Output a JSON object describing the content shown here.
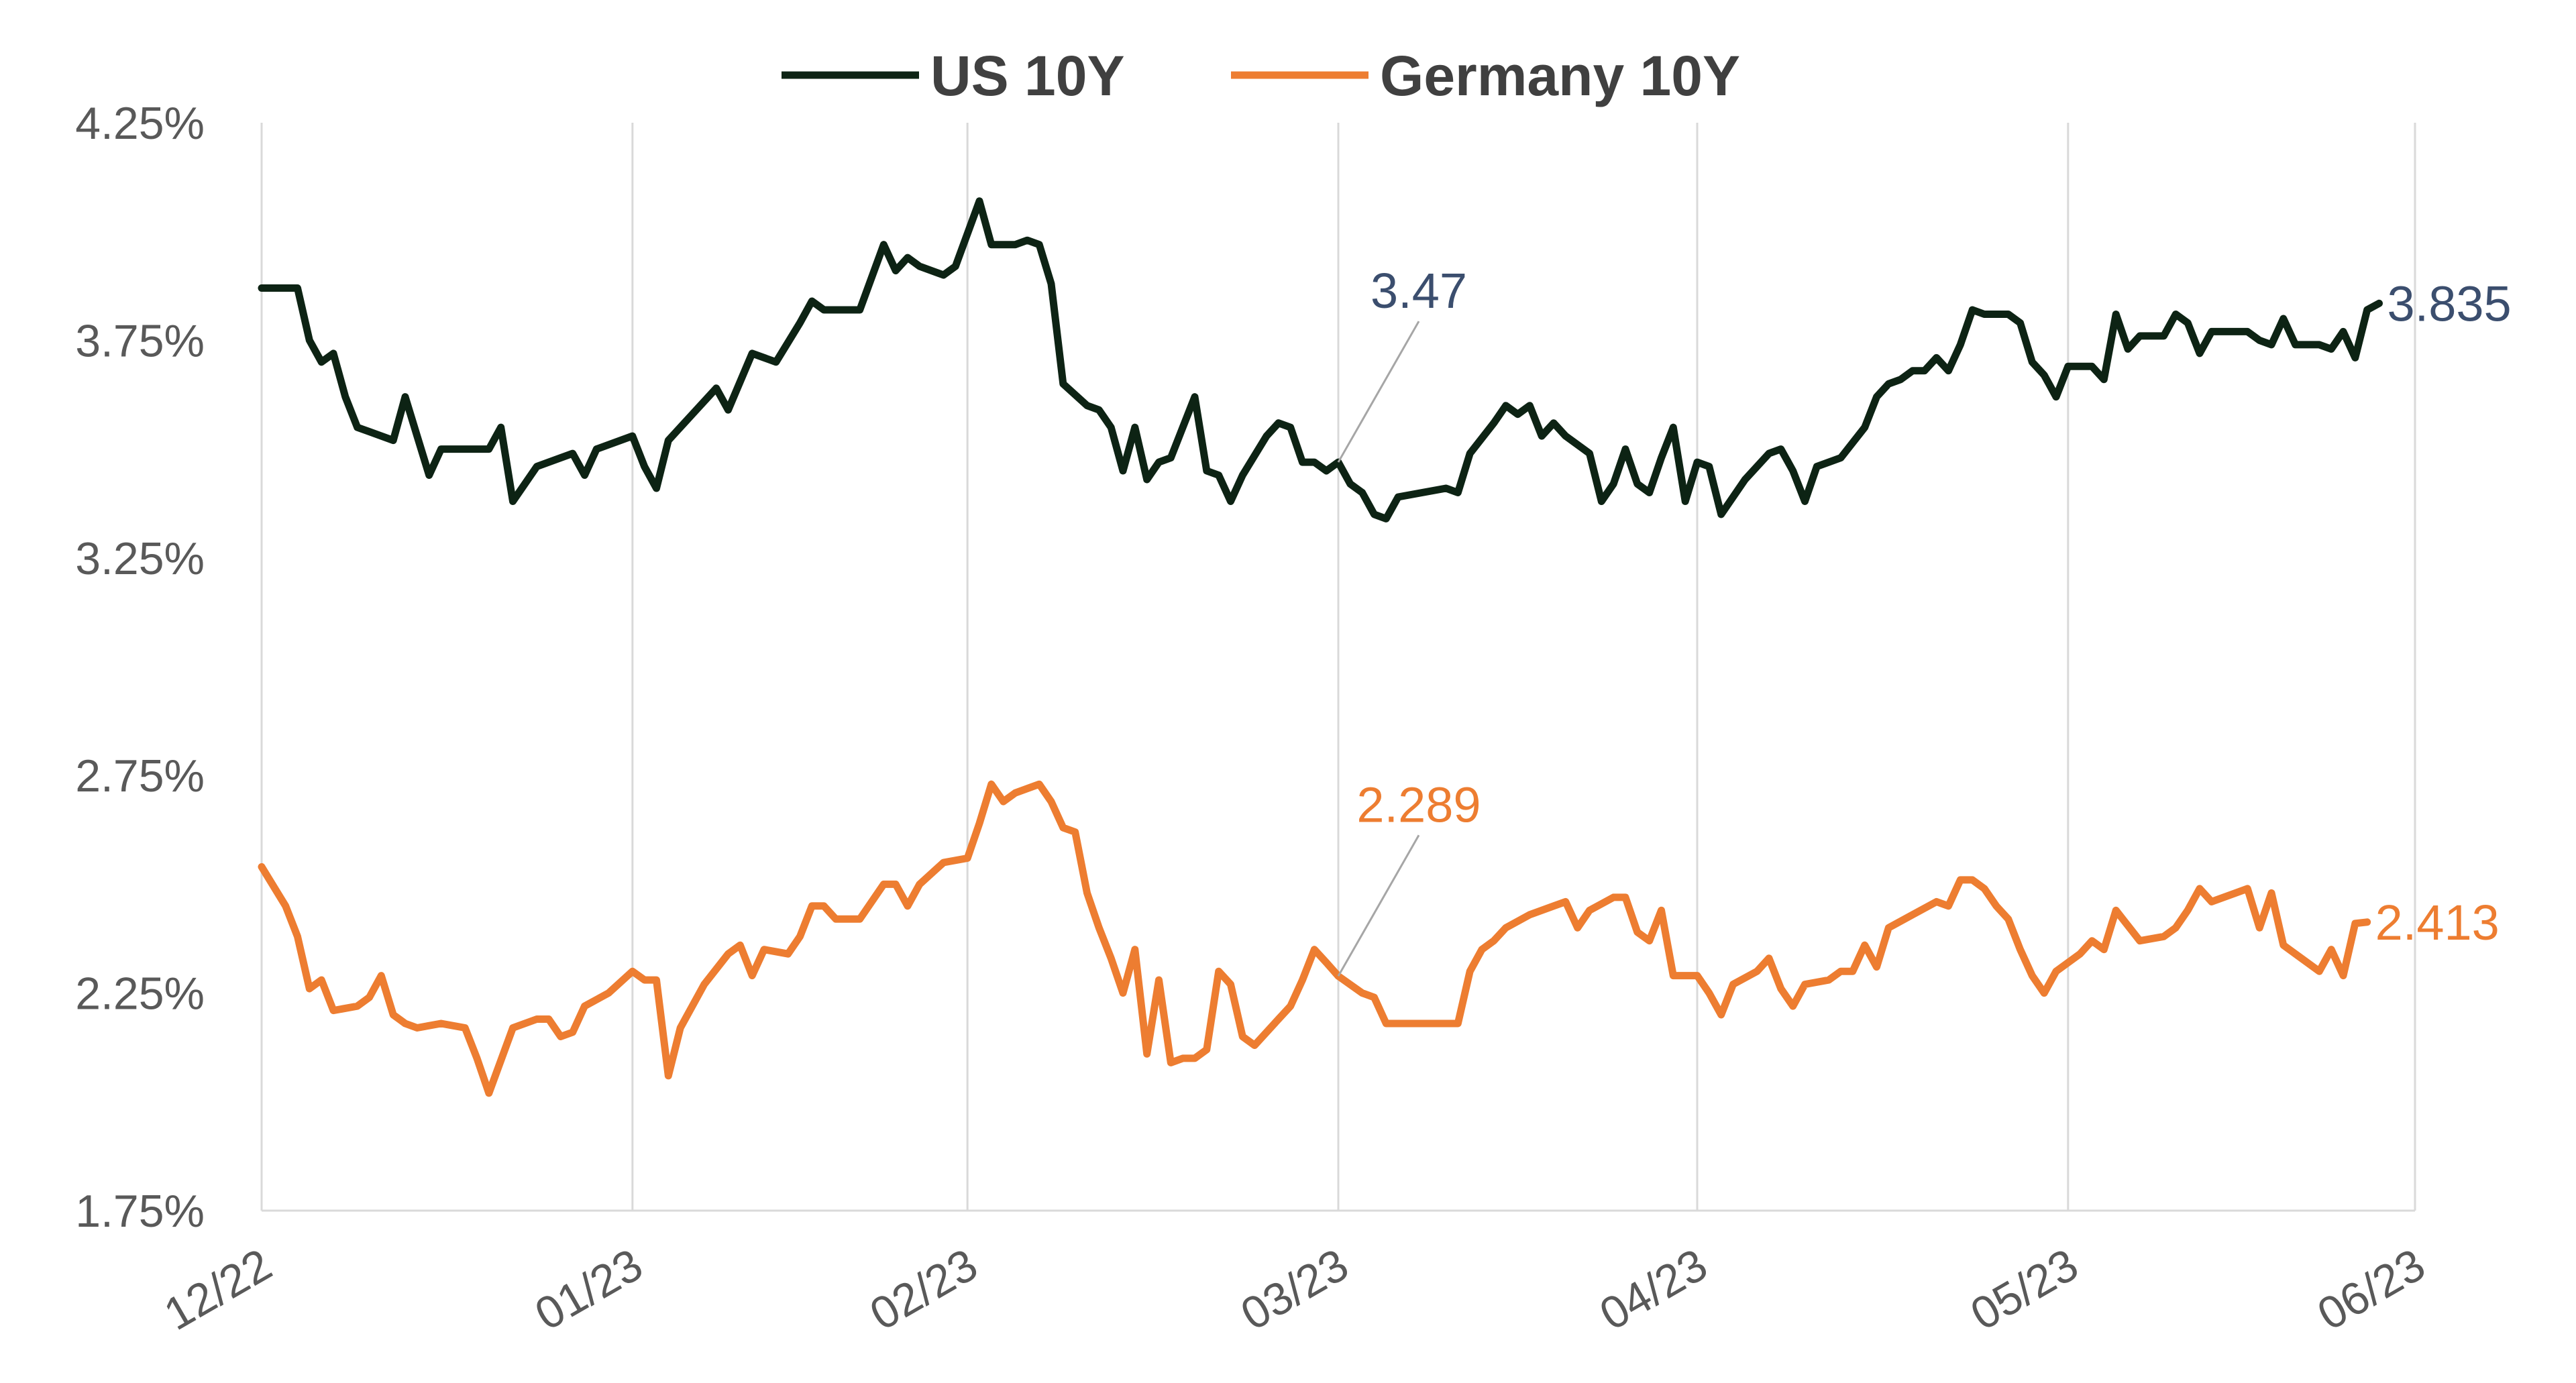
{
  "chart_data": {
    "type": "line",
    "title": "",
    "xlabel": "",
    "ylabel": "",
    "ylim": [
      1.75,
      4.25
    ],
    "y_ticks": [
      "4.25%",
      "3.75%",
      "3.25%",
      "2.75%",
      "2.25%",
      "1.75%"
    ],
    "y_tick_values": [
      4.25,
      3.75,
      3.25,
      2.75,
      2.25,
      1.75
    ],
    "x_range": [
      0,
      180
    ],
    "x_ticks": [
      {
        "label": "12/22",
        "x": 0
      },
      {
        "label": "01/23",
        "x": 31
      },
      {
        "label": "02/23",
        "x": 59
      },
      {
        "label": "03/23",
        "x": 90
      },
      {
        "label": "04/23",
        "x": 120
      },
      {
        "label": "05/23",
        "x": 151
      },
      {
        "label": "06/23",
        "x": 180
      }
    ],
    "grid": "vertical",
    "legend_position": "top-center",
    "series": [
      {
        "name": "US 10Y",
        "color": "#0d2314",
        "points": [
          [
            0,
            3.87
          ],
          [
            3,
            3.87
          ],
          [
            4,
            3.75
          ],
          [
            5,
            3.7
          ],
          [
            6,
            3.72
          ],
          [
            7,
            3.62
          ],
          [
            8,
            3.55
          ],
          [
            9,
            3.54
          ],
          [
            11,
            3.52
          ],
          [
            12,
            3.62
          ],
          [
            13,
            3.53
          ],
          [
            14,
            3.44
          ],
          [
            15,
            3.5
          ],
          [
            17,
            3.5
          ],
          [
            19,
            3.5
          ],
          [
            20,
            3.55
          ],
          [
            21,
            3.38
          ],
          [
            23,
            3.46
          ],
          [
            25,
            3.48
          ],
          [
            26,
            3.49
          ],
          [
            27,
            3.44
          ],
          [
            28,
            3.5
          ],
          [
            30,
            3.52
          ],
          [
            31,
            3.53
          ],
          [
            32,
            3.46
          ],
          [
            33,
            3.41
          ],
          [
            34,
            3.52
          ],
          [
            36,
            3.58
          ],
          [
            38,
            3.64
          ],
          [
            39,
            3.59
          ],
          [
            41,
            3.72
          ],
          [
            43,
            3.7
          ],
          [
            45,
            3.79
          ],
          [
            46,
            3.84
          ],
          [
            47,
            3.82
          ],
          [
            48,
            3.82
          ],
          [
            50,
            3.82
          ],
          [
            52,
            3.97
          ],
          [
            53,
            3.91
          ],
          [
            54,
            3.94
          ],
          [
            55,
            3.92
          ],
          [
            57,
            3.9
          ],
          [
            58,
            3.92
          ],
          [
            60,
            4.07
          ],
          [
            61,
            3.97
          ],
          [
            63,
            3.97
          ],
          [
            64,
            3.98
          ],
          [
            65,
            3.97
          ],
          [
            66,
            3.88
          ],
          [
            67,
            3.65
          ],
          [
            69,
            3.6
          ],
          [
            70,
            3.59
          ],
          [
            71,
            3.55
          ],
          [
            72,
            3.45
          ],
          [
            73,
            3.55
          ],
          [
            74,
            3.43
          ],
          [
            75,
            3.47
          ],
          [
            76,
            3.48
          ],
          [
            78,
            3.62
          ],
          [
            79,
            3.45
          ],
          [
            80,
            3.44
          ],
          [
            81,
            3.38
          ],
          [
            82,
            3.44
          ],
          [
            84,
            3.53
          ],
          [
            85,
            3.56
          ],
          [
            86,
            3.55
          ],
          [
            87,
            3.47
          ],
          [
            88,
            3.47
          ],
          [
            89,
            3.45
          ],
          [
            90,
            3.47
          ],
          [
            91,
            3.42
          ],
          [
            92,
            3.4
          ],
          [
            93,
            3.35
          ],
          [
            94,
            3.34
          ],
          [
            95,
            3.39
          ],
          [
            97,
            3.4
          ],
          [
            99,
            3.41
          ],
          [
            100,
            3.4
          ],
          [
            101,
            3.49
          ],
          [
            103,
            3.56
          ],
          [
            104,
            3.6
          ],
          [
            105,
            3.58
          ],
          [
            106,
            3.6
          ],
          [
            107,
            3.53
          ],
          [
            108,
            3.56
          ],
          [
            109,
            3.53
          ],
          [
            111,
            3.49
          ],
          [
            112,
            3.38
          ],
          [
            113,
            3.42
          ],
          [
            114,
            3.5
          ],
          [
            115,
            3.42
          ],
          [
            116,
            3.4
          ],
          [
            117,
            3.48
          ],
          [
            118,
            3.55
          ],
          [
            119,
            3.38
          ],
          [
            120,
            3.47
          ],
          [
            121,
            3.46
          ],
          [
            122,
            3.35
          ],
          [
            124,
            3.43
          ],
          [
            126,
            3.49
          ],
          [
            127,
            3.5
          ],
          [
            128,
            3.45
          ],
          [
            129,
            3.38
          ],
          [
            130,
            3.46
          ],
          [
            131,
            3.47
          ],
          [
            132,
            3.48
          ],
          [
            134,
            3.55
          ],
          [
            135,
            3.62
          ],
          [
            136,
            3.65
          ],
          [
            137,
            3.66
          ],
          [
            138,
            3.68
          ],
          [
            139,
            3.68
          ],
          [
            140,
            3.71
          ],
          [
            141,
            3.68
          ],
          [
            142,
            3.74
          ],
          [
            143,
            3.82
          ],
          [
            144,
            3.81
          ],
          [
            145,
            3.81
          ],
          [
            146,
            3.81
          ],
          [
            147,
            3.79
          ],
          [
            148,
            3.7
          ],
          [
            149,
            3.67
          ],
          [
            150,
            3.62
          ],
          [
            151,
            3.69
          ],
          [
            153,
            3.69
          ],
          [
            154,
            3.66
          ],
          [
            155,
            3.81
          ],
          [
            156,
            3.73
          ],
          [
            157,
            3.76
          ],
          [
            158,
            3.76
          ],
          [
            159,
            3.76
          ],
          [
            160,
            3.81
          ],
          [
            161,
            3.79
          ],
          [
            162,
            3.72
          ],
          [
            163,
            3.77
          ],
          [
            164,
            3.77
          ],
          [
            165,
            3.77
          ],
          [
            166,
            3.77
          ],
          [
            167,
            3.75
          ],
          [
            168,
            3.74
          ],
          [
            169,
            3.8
          ],
          [
            170,
            3.74
          ],
          [
            172,
            3.74
          ],
          [
            173,
            3.73
          ],
          [
            174,
            3.77
          ],
          [
            175,
            3.71
          ],
          [
            176,
            3.82
          ],
          [
            177,
            3.835
          ]
        ]
      },
      {
        "name": "Germany 10Y",
        "color": "#ed7d31",
        "points": [
          [
            0,
            2.54
          ],
          [
            2,
            2.45
          ],
          [
            3,
            2.38
          ],
          [
            4,
            2.26
          ],
          [
            5,
            2.28
          ],
          [
            6,
            2.21
          ],
          [
            8,
            2.22
          ],
          [
            9,
            2.24
          ],
          [
            10,
            2.29
          ],
          [
            11,
            2.2
          ],
          [
            12,
            2.18
          ],
          [
            13,
            2.17
          ],
          [
            15,
            2.18
          ],
          [
            17,
            2.17
          ],
          [
            18,
            2.1
          ],
          [
            19,
            2.02
          ],
          [
            21,
            2.17
          ],
          [
            23,
            2.19
          ],
          [
            24,
            2.19
          ],
          [
            25,
            2.15
          ],
          [
            26,
            2.16
          ],
          [
            27,
            2.22
          ],
          [
            29,
            2.25
          ],
          [
            31,
            2.3
          ],
          [
            32,
            2.28
          ],
          [
            33,
            2.28
          ],
          [
            34,
            2.06
          ],
          [
            35,
            2.17
          ],
          [
            37,
            2.27
          ],
          [
            39,
            2.34
          ],
          [
            40,
            2.36
          ],
          [
            41,
            2.29
          ],
          [
            42,
            2.35
          ],
          [
            44,
            2.34
          ],
          [
            45,
            2.38
          ],
          [
            46,
            2.45
          ],
          [
            47,
            2.45
          ],
          [
            48,
            2.42
          ],
          [
            50,
            2.42
          ],
          [
            52,
            2.5
          ],
          [
            53,
            2.5
          ],
          [
            54,
            2.45
          ],
          [
            55,
            2.5
          ],
          [
            57,
            2.55
          ],
          [
            59,
            2.56
          ],
          [
            60,
            2.64
          ],
          [
            61,
            2.73
          ],
          [
            62,
            2.69
          ],
          [
            63,
            2.71
          ],
          [
            64,
            2.72
          ],
          [
            65,
            2.73
          ],
          [
            66,
            2.69
          ],
          [
            67,
            2.63
          ],
          [
            68,
            2.62
          ],
          [
            69,
            2.48
          ],
          [
            70,
            2.4
          ],
          [
            71,
            2.33
          ],
          [
            72,
            2.25
          ],
          [
            73,
            2.35
          ],
          [
            74,
            2.11
          ],
          [
            75,
            2.28
          ],
          [
            76,
            2.09
          ],
          [
            77,
            2.1
          ],
          [
            78,
            2.1
          ],
          [
            79,
            2.12
          ],
          [
            80,
            2.3
          ],
          [
            81,
            2.27
          ],
          [
            82,
            2.15
          ],
          [
            83,
            2.13
          ],
          [
            85,
            2.19
          ],
          [
            86,
            2.22
          ],
          [
            87,
            2.28
          ],
          [
            88,
            2.35
          ],
          [
            89,
            2.32
          ],
          [
            90,
            2.289
          ],
          [
            92,
            2.25
          ],
          [
            93,
            2.24
          ],
          [
            94,
            2.18
          ],
          [
            96,
            2.18
          ],
          [
            98,
            2.18
          ],
          [
            100,
            2.18
          ],
          [
            101,
            2.3
          ],
          [
            102,
            2.35
          ],
          [
            103,
            2.37
          ],
          [
            104,
            2.4
          ],
          [
            106,
            2.43
          ],
          [
            108,
            2.45
          ],
          [
            109,
            2.46
          ],
          [
            110,
            2.4
          ],
          [
            111,
            2.44
          ],
          [
            113,
            2.47
          ],
          [
            114,
            2.47
          ],
          [
            115,
            2.39
          ],
          [
            116,
            2.37
          ],
          [
            117,
            2.44
          ],
          [
            118,
            2.29
          ],
          [
            119,
            2.29
          ],
          [
            120,
            2.29
          ],
          [
            121,
            2.25
          ],
          [
            122,
            2.2
          ],
          [
            123,
            2.27
          ],
          [
            125,
            2.3
          ],
          [
            126,
            2.33
          ],
          [
            127,
            2.26
          ],
          [
            128,
            2.22
          ],
          [
            129,
            2.27
          ],
          [
            131,
            2.28
          ],
          [
            132,
            2.3
          ],
          [
            133,
            2.3
          ],
          [
            134,
            2.36
          ],
          [
            135,
            2.31
          ],
          [
            136,
            2.4
          ],
          [
            138,
            2.43
          ],
          [
            140,
            2.46
          ],
          [
            141,
            2.45
          ],
          [
            142,
            2.51
          ],
          [
            143,
            2.51
          ],
          [
            144,
            2.49
          ],
          [
            145,
            2.45
          ],
          [
            146,
            2.42
          ],
          [
            147,
            2.35
          ],
          [
            148,
            2.29
          ],
          [
            149,
            2.25
          ],
          [
            150,
            2.3
          ],
          [
            152,
            2.34
          ],
          [
            153,
            2.37
          ],
          [
            154,
            2.35
          ],
          [
            155,
            2.44
          ],
          [
            157,
            2.37
          ],
          [
            159,
            2.38
          ],
          [
            160,
            2.4
          ],
          [
            161,
            2.44
          ],
          [
            162,
            2.49
          ],
          [
            163,
            2.46
          ],
          [
            165,
            2.48
          ],
          [
            166,
            2.49
          ],
          [
            167,
            2.4
          ],
          [
            168,
            2.48
          ],
          [
            169,
            2.36
          ],
          [
            172,
            2.3
          ],
          [
            173,
            2.35
          ],
          [
            174,
            2.29
          ],
          [
            175,
            2.41
          ],
          [
            176,
            2.413
          ]
        ]
      }
    ],
    "annotations": [
      {
        "text": "3.47",
        "series": "US 10Y",
        "x": 90,
        "y": 3.47,
        "color": "#3b4e6e",
        "style": "leader"
      },
      {
        "text": "3.835",
        "series": "US 10Y",
        "x": 177,
        "y": 3.835,
        "color": "#3b4e6e",
        "style": "end"
      },
      {
        "text": "2.289",
        "series": "Germany 10Y",
        "x": 90,
        "y": 2.289,
        "color": "#ed7d31",
        "style": "leader"
      },
      {
        "text": "2.413",
        "series": "Germany 10Y",
        "x": 176,
        "y": 2.413,
        "color": "#ed7d31",
        "style": "end"
      }
    ]
  }
}
